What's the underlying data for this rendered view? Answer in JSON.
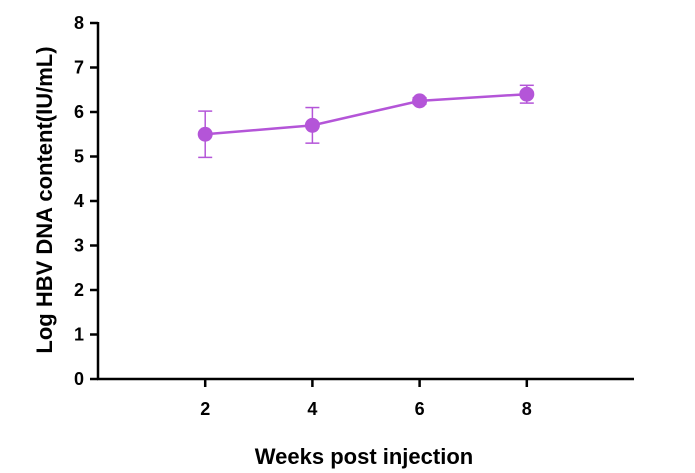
{
  "chart_data": {
    "type": "line",
    "xlabel": "Weeks post injection",
    "ylabel": "Log HBV DNA  content(IU/mL)",
    "xlim": [
      0,
      10
    ],
    "ylim": [
      0,
      8
    ],
    "x_ticks": [
      2,
      4,
      6,
      8
    ],
    "y_ticks": [
      0,
      1,
      2,
      3,
      4,
      5,
      6,
      7,
      8
    ],
    "grid": false,
    "series": [
      {
        "color": "#b455d8",
        "x": [
          2,
          4,
          6,
          8
        ],
        "y": [
          5.5,
          5.7,
          6.25,
          6.4
        ],
        "error": [
          0.52,
          0.4,
          0.07,
          0.2
        ]
      }
    ]
  }
}
